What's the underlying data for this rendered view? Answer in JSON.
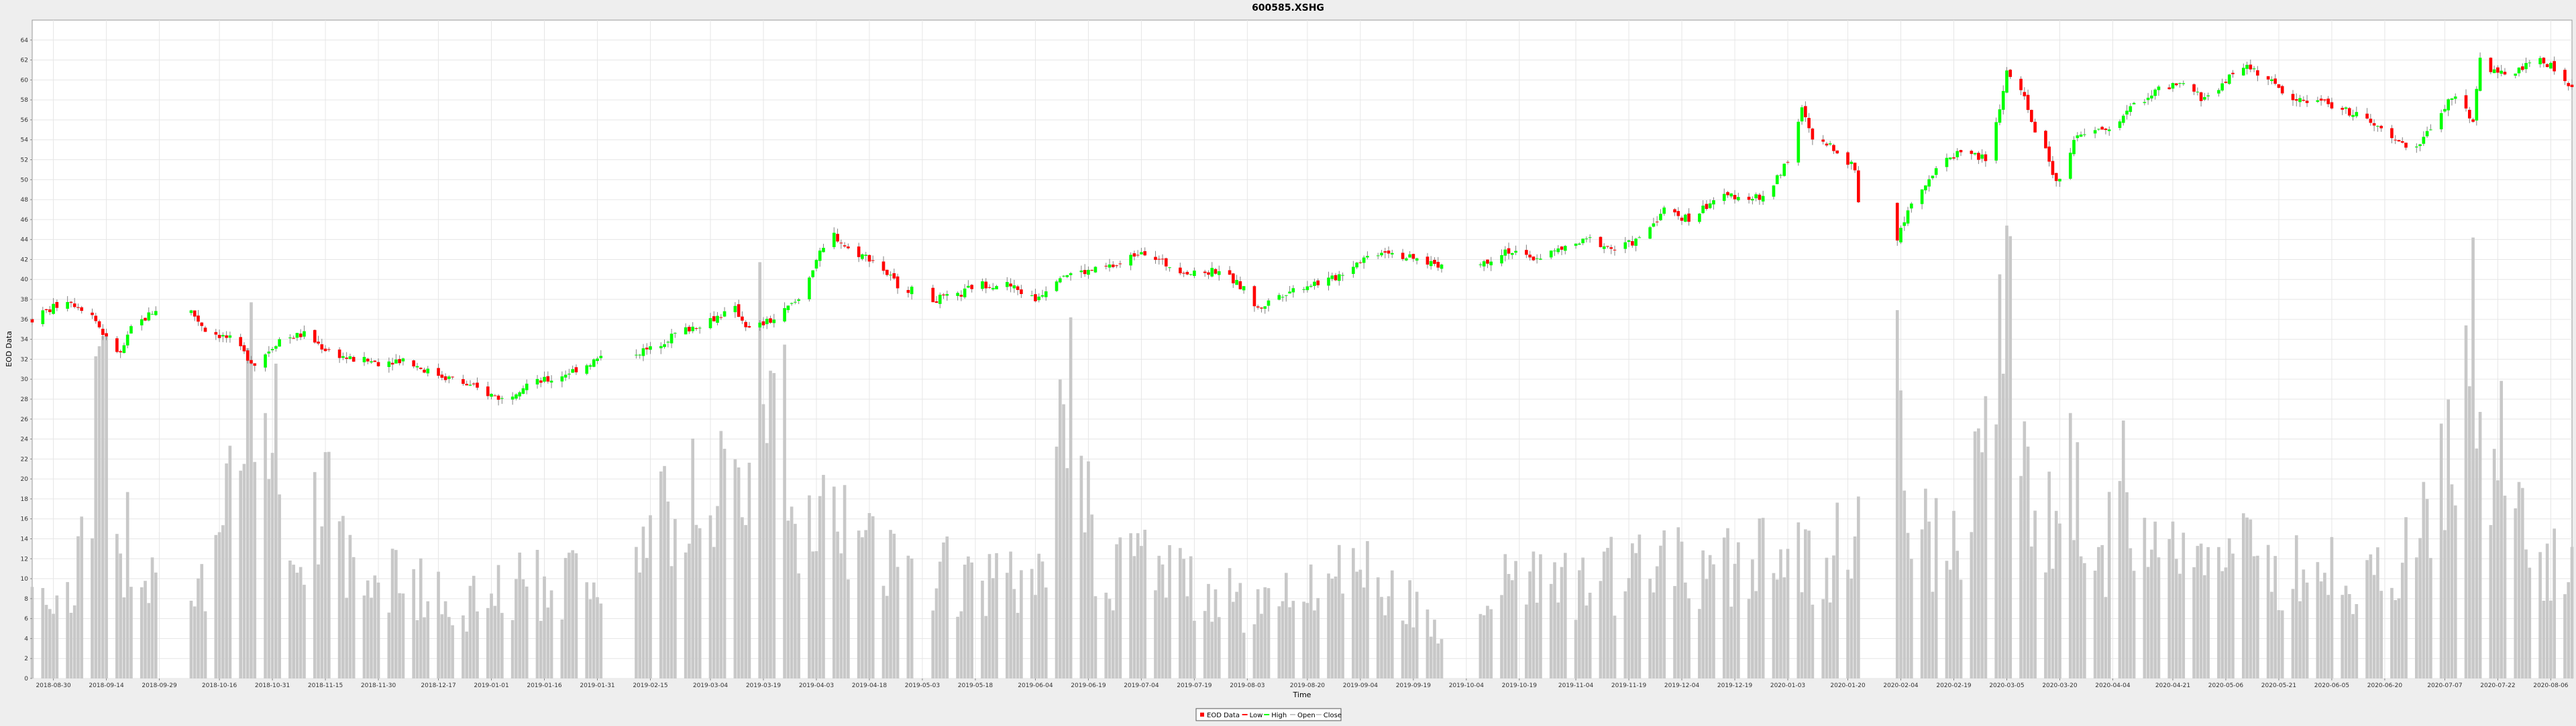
{
  "chart_data": {
    "type": "candlestick",
    "title": "600585.XSHG",
    "xlabel": "Time",
    "ylabel": "EOD Data",
    "ylim": [
      0,
      66
    ],
    "y_ticks": [
      0,
      2,
      4,
      6,
      8,
      10,
      12,
      14,
      16,
      18,
      20,
      22,
      24,
      26,
      28,
      30,
      32,
      34,
      36,
      38,
      40,
      42,
      44,
      46,
      48,
      50,
      52,
      54,
      56,
      58,
      60,
      62,
      64
    ],
    "x_range": [
      "2018-08-24",
      "2020-08-12"
    ],
    "x_ticks": [
      "2018-08-30",
      "2018-09-14",
      "2018-09-29",
      "2018-10-16",
      "2018-10-31",
      "2018-11-15",
      "2018-11-30",
      "2018-12-17",
      "2019-01-01",
      "2019-01-16",
      "2019-01-31",
      "2019-02-15",
      "2019-03-04",
      "2019-03-19",
      "2019-04-03",
      "2019-04-18",
      "2019-05-03",
      "2019-05-18",
      "2019-06-04",
      "2019-06-19",
      "2019-07-04",
      "2019-07-19",
      "2019-08-03",
      "2019-08-20",
      "2019-09-04",
      "2019-09-19",
      "2019-10-04",
      "2019-10-19",
      "2019-11-04",
      "2019-11-19",
      "2019-12-04",
      "2019-12-19",
      "2020-01-03",
      "2020-01-20",
      "2020-02-04",
      "2020-02-19",
      "2020-03-05",
      "2020-03-20",
      "2020-04-04",
      "2020-04-21",
      "2020-05-06",
      "2020-05-21",
      "2020-06-05",
      "2020-06-20",
      "2020-07-07",
      "2020-07-22",
      "2020-08-06"
    ],
    "grid": true,
    "legend_position": "bottom-center",
    "legend": [
      "EOD Data",
      "Low",
      "High",
      "Open",
      "Close"
    ],
    "colors": {
      "up": "#00ff00",
      "down": "#ff0000",
      "volume": "#c8c8c8",
      "grid": "#e6e6e6",
      "wick": "#808080"
    },
    "price_anchors": [
      [
        "2018-08-24",
        36
      ],
      [
        "2018-09-03",
        38
      ],
      [
        "2018-09-10",
        36.5
      ],
      [
        "2018-09-14",
        34
      ],
      [
        "2018-09-18",
        32.5
      ],
      [
        "2018-09-21",
        35
      ],
      [
        "2018-09-28",
        37
      ],
      [
        "2018-10-08",
        36.8
      ],
      [
        "2018-10-12",
        35
      ],
      [
        "2018-10-19",
        34
      ],
      [
        "2018-10-26",
        31.5
      ],
      [
        "2018-11-02",
        34
      ],
      [
        "2018-11-09",
        34.5
      ],
      [
        "2018-11-15",
        33
      ],
      [
        "2018-11-22",
        32
      ],
      [
        "2018-11-30",
        31.7
      ],
      [
        "2018-12-07",
        32
      ],
      [
        "2018-12-14",
        30.8
      ],
      [
        "2018-12-21",
        30
      ],
      [
        "2018-12-28",
        29
      ],
      [
        "2019-01-04",
        28
      ],
      [
        "2019-01-11",
        29.5
      ],
      [
        "2019-01-18",
        30
      ],
      [
        "2019-01-25",
        31
      ],
      [
        "2019-01-31",
        32
      ],
      [
        "2019-02-15",
        33
      ],
      [
        "2019-02-22",
        34.5
      ],
      [
        "2019-03-04",
        36
      ],
      [
        "2019-03-11",
        37
      ],
      [
        "2019-03-15",
        35
      ],
      [
        "2019-03-22",
        36
      ],
      [
        "2019-03-29",
        38
      ],
      [
        "2019-04-03",
        42
      ],
      [
        "2019-04-08",
        44.5
      ],
      [
        "2019-04-12",
        43
      ],
      [
        "2019-04-19",
        42
      ],
      [
        "2019-04-26",
        39.5
      ],
      [
        "2019-05-06",
        38
      ],
      [
        "2019-05-13",
        38.3
      ],
      [
        "2019-05-18",
        39.5
      ],
      [
        "2019-05-27",
        39.5
      ],
      [
        "2019-06-04",
        38
      ],
      [
        "2019-06-11",
        40.5
      ],
      [
        "2019-06-19",
        40.8
      ],
      [
        "2019-06-28",
        41.5
      ],
      [
        "2019-07-04",
        43
      ],
      [
        "2019-07-11",
        41.5
      ],
      [
        "2019-07-19",
        40.5
      ],
      [
        "2019-07-26",
        41
      ],
      [
        "2019-08-02",
        39
      ],
      [
        "2019-08-06",
        37
      ],
      [
        "2019-08-12",
        38.5
      ],
      [
        "2019-08-20",
        39.5
      ],
      [
        "2019-08-27",
        40
      ],
      [
        "2019-09-04",
        42
      ],
      [
        "2019-09-11",
        43
      ],
      [
        "2019-09-19",
        42
      ],
      [
        "2019-09-27",
        41.5
      ],
      [
        "2019-10-08",
        41.5
      ],
      [
        "2019-10-15",
        43
      ],
      [
        "2019-10-22",
        42
      ],
      [
        "2019-10-31",
        43
      ],
      [
        "2019-11-08",
        44
      ],
      [
        "2019-11-15",
        43
      ],
      [
        "2019-11-22",
        44
      ],
      [
        "2019-11-29",
        47
      ],
      [
        "2019-12-06",
        46
      ],
      [
        "2019-12-13",
        48
      ],
      [
        "2019-12-20",
        48.5
      ],
      [
        "2019-12-27",
        48
      ],
      [
        "2020-01-03",
        52
      ],
      [
        "2020-01-07",
        57
      ],
      [
        "2020-01-10",
        54
      ],
      [
        "2020-01-17",
        53
      ],
      [
        "2020-01-22",
        51
      ],
      [
        "2020-01-23",
        48
      ],
      [
        "2020-02-03",
        44
      ],
      [
        "2020-02-07",
        48
      ],
      [
        "2020-02-14",
        51
      ],
      [
        "2020-02-21",
        53
      ],
      [
        "2020-02-28",
        52
      ],
      [
        "2020-03-03",
        57
      ],
      [
        "2020-03-05",
        61
      ],
      [
        "2020-03-10",
        58
      ],
      [
        "2020-03-13",
        55
      ],
      [
        "2020-03-17",
        52
      ],
      [
        "2020-03-19",
        49.5
      ],
      [
        "2020-03-24",
        54
      ],
      [
        "2020-03-31",
        55
      ],
      [
        "2020-04-03",
        55
      ],
      [
        "2020-04-10",
        57.5
      ],
      [
        "2020-04-17",
        59
      ],
      [
        "2020-04-24",
        59.5
      ],
      [
        "2020-04-30",
        58
      ],
      [
        "2020-05-06",
        60
      ],
      [
        "2020-05-12",
        61.5
      ],
      [
        "2020-05-18",
        60
      ],
      [
        "2020-05-25",
        58
      ],
      [
        "2020-06-01",
        58
      ],
      [
        "2020-06-08",
        57
      ],
      [
        "2020-06-15",
        56
      ],
      [
        "2020-06-22",
        54
      ],
      [
        "2020-06-29",
        53
      ],
      [
        "2020-07-06",
        57
      ],
      [
        "2020-07-10",
        58.5
      ],
      [
        "2020-07-15",
        56
      ],
      [
        "2020-07-17",
        62
      ],
      [
        "2020-07-22",
        60.5
      ],
      [
        "2020-07-28",
        61
      ],
      [
        "2020-08-03",
        62
      ],
      [
        "2020-08-06",
        61.5
      ],
      [
        "2020-08-12",
        59
      ]
    ],
    "volume_anchors": [
      [
        "2018-08-24",
        10
      ],
      [
        "2018-09-05",
        9
      ],
      [
        "2018-09-13",
        31
      ],
      [
        "2018-09-17",
        15
      ],
      [
        "2018-09-28",
        13
      ],
      [
        "2018-10-12",
        11
      ],
      [
        "2018-10-20",
        20
      ],
      [
        "2018-10-26",
        31
      ],
      [
        "2018-11-02",
        25
      ],
      [
        "2018-11-09",
        13
      ],
      [
        "2018-11-16",
        21
      ],
      [
        "2018-11-23",
        10
      ],
      [
        "2018-12-07",
        11
      ],
      [
        "2018-12-14",
        9
      ],
      [
        "2018-12-28",
        8
      ],
      [
        "2019-01-11",
        10
      ],
      [
        "2019-01-25",
        11
      ],
      [
        "2019-02-15",
        15
      ],
      [
        "2019-02-28",
        20
      ],
      [
        "2019-03-15",
        20
      ],
      [
        "2019-03-19",
        40
      ],
      [
        "2019-03-29",
        18
      ],
      [
        "2019-04-12",
        15
      ],
      [
        "2019-04-26",
        12
      ],
      [
        "2019-05-10",
        11
      ],
      [
        "2019-05-24",
        10
      ],
      [
        "2019-06-07",
        10
      ],
      [
        "2019-06-13",
        33
      ],
      [
        "2019-06-21",
        12
      ],
      [
        "2019-07-05",
        13
      ],
      [
        "2019-07-19",
        10
      ],
      [
        "2019-08-02",
        8
      ],
      [
        "2019-08-16",
        9
      ],
      [
        "2019-08-30",
        13
      ],
      [
        "2019-09-13",
        9
      ],
      [
        "2019-09-27",
        6
      ],
      [
        "2019-10-10",
        9
      ],
      [
        "2019-10-18",
        12
      ],
      [
        "2019-11-01",
        10
      ],
      [
        "2019-11-15",
        11
      ],
      [
        "2019-11-29",
        12
      ],
      [
        "2019-12-13",
        11
      ],
      [
        "2019-12-27",
        15
      ],
      [
        "2020-01-10",
        13
      ],
      [
        "2020-01-17",
        14
      ],
      [
        "2020-01-22",
        18
      ],
      [
        "2020-02-03",
        30
      ],
      [
        "2020-02-07",
        20
      ],
      [
        "2020-02-14",
        14
      ],
      [
        "2020-02-21",
        15
      ],
      [
        "2020-02-28",
        25
      ],
      [
        "2020-03-05",
        45
      ],
      [
        "2020-03-10",
        20
      ],
      [
        "2020-03-17",
        18
      ],
      [
        "2020-03-24",
        22
      ],
      [
        "2020-03-31",
        12
      ],
      [
        "2020-04-07",
        21
      ],
      [
        "2020-04-14",
        12
      ],
      [
        "2020-04-24",
        13
      ],
      [
        "2020-05-06",
        14
      ],
      [
        "2020-05-15",
        12
      ],
      [
        "2020-05-22",
        11
      ],
      [
        "2020-06-01",
        13
      ],
      [
        "2020-06-08",
        11
      ],
      [
        "2020-06-15",
        12
      ],
      [
        "2020-06-22",
        9
      ],
      [
        "2020-06-30",
        18
      ],
      [
        "2020-07-06",
        22
      ],
      [
        "2020-07-10",
        24
      ],
      [
        "2020-07-13",
        30
      ],
      [
        "2020-07-17",
        45
      ],
      [
        "2020-07-20",
        26
      ],
      [
        "2020-07-27",
        20
      ],
      [
        "2020-08-03",
        13
      ],
      [
        "2020-08-12",
        12
      ]
    ]
  }
}
